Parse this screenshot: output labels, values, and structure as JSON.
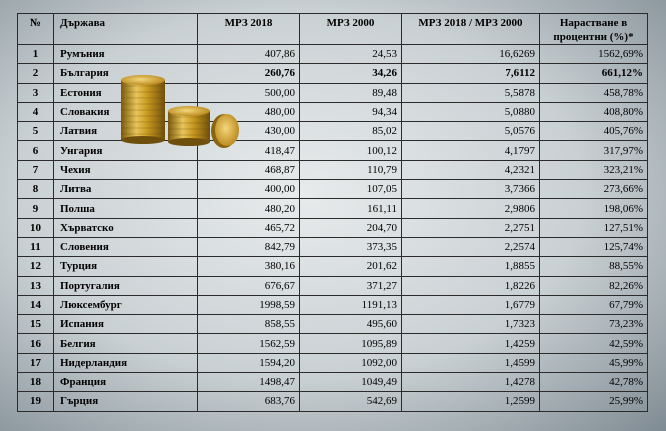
{
  "table": {
    "headers": {
      "no": "№",
      "country": "Държава",
      "mrz2018": "МРЗ 2018",
      "mrz2000": "МРЗ  2000",
      "ratio": "МРЗ 2018 / МРЗ 2000",
      "growth_line1": "Нарастване в",
      "growth_line2": "процентни (%)*"
    },
    "rows": [
      {
        "no": "1",
        "country": "Румъния",
        "mrz2018": "407,86",
        "mrz2000": "24,53",
        "ratio": "16,6269",
        "growth": "1562,69%",
        "bold": false
      },
      {
        "no": "2",
        "country": "България",
        "mrz2018": "260,76",
        "mrz2000": "34,26",
        "ratio": "7,6112",
        "growth": "661,12%",
        "bold": true
      },
      {
        "no": "3",
        "country": "Естония",
        "mrz2018": "500,00",
        "mrz2000": "89,48",
        "ratio": "5,5878",
        "growth": "458,78%",
        "bold": false
      },
      {
        "no": "4",
        "country": "Словакия",
        "mrz2018": "480,00",
        "mrz2000": "94,34",
        "ratio": "5,0880",
        "growth": "408,80%",
        "bold": false
      },
      {
        "no": "5",
        "country": "Латвия",
        "mrz2018": "430,00",
        "mrz2000": "85,02",
        "ratio": "5,0576",
        "growth": "405,76%",
        "bold": false
      },
      {
        "no": "6",
        "country": "Унгария",
        "mrz2018": "418,47",
        "mrz2000": "100,12",
        "ratio": "4,1797",
        "growth": "317,97%",
        "bold": false
      },
      {
        "no": "7",
        "country": "Чехия",
        "mrz2018": "468,87",
        "mrz2000": "110,79",
        "ratio": "4,2321",
        "growth": "323,21%",
        "bold": false
      },
      {
        "no": "8",
        "country": "Литва",
        "mrz2018": "400,00",
        "mrz2000": "107,05",
        "ratio": "3,7366",
        "growth": "273,66%",
        "bold": false
      },
      {
        "no": "9",
        "country": "Полша",
        "mrz2018": "480,20",
        "mrz2000": "161,11",
        "ratio": "2,9806",
        "growth": "198,06%",
        "bold": false
      },
      {
        "no": "10",
        "country": "Хърватско",
        "mrz2018": "465,72",
        "mrz2000": "204,70",
        "ratio": "2,2751",
        "growth": "127,51%",
        "bold": false
      },
      {
        "no": "11",
        "country": "Словения",
        "mrz2018": "842,79",
        "mrz2000": "373,35",
        "ratio": "2,2574",
        "growth": "125,74%",
        "bold": false
      },
      {
        "no": "12",
        "country": "Турция",
        "mrz2018": "380,16",
        "mrz2000": "201,62",
        "ratio": "1,8855",
        "growth": "88,55%",
        "bold": false
      },
      {
        "no": "13",
        "country": "Португалия",
        "mrz2018": "676,67",
        "mrz2000": "371,27",
        "ratio": "1,8226",
        "growth": "82,26%",
        "bold": false
      },
      {
        "no": "14",
        "country": "Люксембург",
        "mrz2018": "1998,59",
        "mrz2000": "1191,13",
        "ratio": "1,6779",
        "growth": "67,79%",
        "bold": false
      },
      {
        "no": "15",
        "country": "Испания",
        "mrz2018": "858,55",
        "mrz2000": "495,60",
        "ratio": "1,7323",
        "growth": "73,23%",
        "bold": false
      },
      {
        "no": "16",
        "country": "Белгия",
        "mrz2018": "1562,59",
        "mrz2000": "1095,89",
        "ratio": "1,4259",
        "growth": "42,59%",
        "bold": false
      },
      {
        "no": "17",
        "country": "Нидерландия",
        "mrz2018": "1594,20",
        "mrz2000": "1092,00",
        "ratio": "1,4599",
        "growth": "45,99%",
        "bold": false
      },
      {
        "no": "18",
        "country": "Франция",
        "mrz2018": "1498,47",
        "mrz2000": "1049,49",
        "ratio": "1,4278",
        "growth": "42,78%",
        "bold": false
      },
      {
        "no": "19",
        "country": "Гърция",
        "mrz2018": "683,76",
        "mrz2000": "542,69",
        "ratio": "1,2599",
        "growth": "25,99%",
        "bold": false
      }
    ]
  },
  "decoration": {
    "icon": "gold-coin-stacks-icon",
    "coin_color": "#c89a1e"
  }
}
